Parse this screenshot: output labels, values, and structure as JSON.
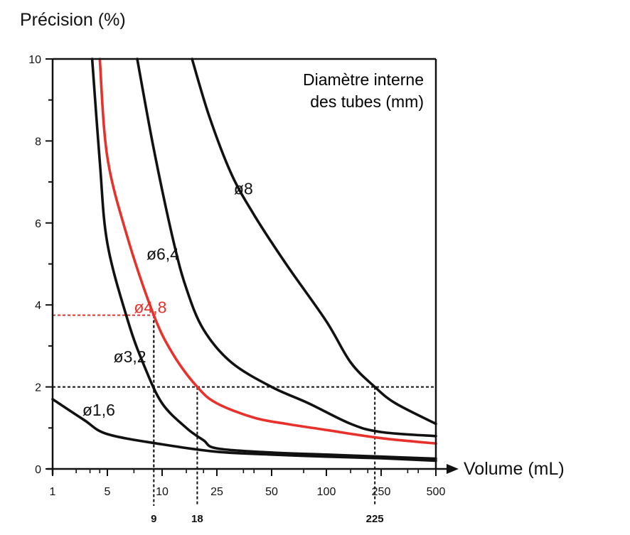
{
  "chart_data": {
    "type": "line",
    "ylabel": "Précision (%)",
    "xlabel": "Volume (mL)",
    "ylim": [
      0,
      10
    ],
    "x_ticks": [
      "1",
      "5",
      "10",
      "25",
      "50",
      "100",
      "250",
      "500"
    ],
    "y_ticks": [
      "0",
      "2",
      "4",
      "6",
      "8",
      "10"
    ],
    "legend_title": [
      "Diamètre interne",
      "des tubes (mm)"
    ],
    "highlight_color": "#e8312a",
    "line_color": "#111111",
    "series": [
      {
        "name": "ø1,6",
        "color": "#111111",
        "points": [
          [
            1,
            1.7
          ],
          [
            2.5,
            1.2
          ],
          [
            5,
            0.85
          ],
          [
            10,
            0.6
          ],
          [
            25,
            0.42
          ],
          [
            50,
            0.35
          ],
          [
            100,
            0.3
          ],
          [
            250,
            0.26
          ],
          [
            500,
            0.2
          ]
        ]
      },
      {
        "name": "ø3,2",
        "color": "#111111",
        "points": [
          [
            3.2,
            10
          ],
          [
            4,
            7.5
          ],
          [
            5,
            5.5
          ],
          [
            6.5,
            3.6
          ],
          [
            8,
            2.5
          ],
          [
            10,
            1.6
          ],
          [
            15,
            1.0
          ],
          [
            20,
            0.7
          ],
          [
            25,
            0.5
          ],
          [
            50,
            0.4
          ],
          [
            100,
            0.35
          ],
          [
            250,
            0.3
          ],
          [
            500,
            0.25
          ]
        ]
      },
      {
        "name": "ø4,8",
        "color": "#e8312a",
        "points": [
          [
            4,
            10
          ],
          [
            5,
            7.6
          ],
          [
            6.5,
            5.6
          ],
          [
            9,
            3.75
          ],
          [
            12,
            2.8
          ],
          [
            18,
            2.0
          ],
          [
            25,
            1.6
          ],
          [
            40,
            1.25
          ],
          [
            60,
            1.1
          ],
          [
            100,
            0.95
          ],
          [
            250,
            0.75
          ],
          [
            500,
            0.62
          ]
        ]
      },
      {
        "name": "ø6,4",
        "color": "#111111",
        "points": [
          [
            7.3,
            10
          ],
          [
            9,
            7.8
          ],
          [
            12,
            5.6
          ],
          [
            15,
            4.4
          ],
          [
            20,
            3.4
          ],
          [
            30,
            2.6
          ],
          [
            50,
            2.0
          ],
          [
            80,
            1.6
          ],
          [
            150,
            1.1
          ],
          [
            250,
            0.9
          ],
          [
            500,
            0.8
          ]
        ]
      },
      {
        "name": "ø8",
        "color": "#111111",
        "points": [
          [
            16.5,
            10
          ],
          [
            22,
            8.6
          ],
          [
            30,
            7.2
          ],
          [
            40,
            6.2
          ],
          [
            60,
            5.0
          ],
          [
            100,
            3.6
          ],
          [
            150,
            2.6
          ],
          [
            225,
            2.0
          ],
          [
            300,
            1.6
          ],
          [
            500,
            1.1
          ]
        ]
      }
    ],
    "highlight_values": {
      "x": [
        "9",
        "18",
        "225"
      ]
    },
    "guides": [
      {
        "color": "#e8312a",
        "y": 3.75,
        "x": 9
      },
      {
        "color": "#111111",
        "y": 2,
        "x": [
          9,
          18,
          225
        ]
      }
    ],
    "labels": [
      "ø1,6",
      "ø3,2",
      "ø4,8",
      "ø6,4",
      "ø8"
    ]
  }
}
